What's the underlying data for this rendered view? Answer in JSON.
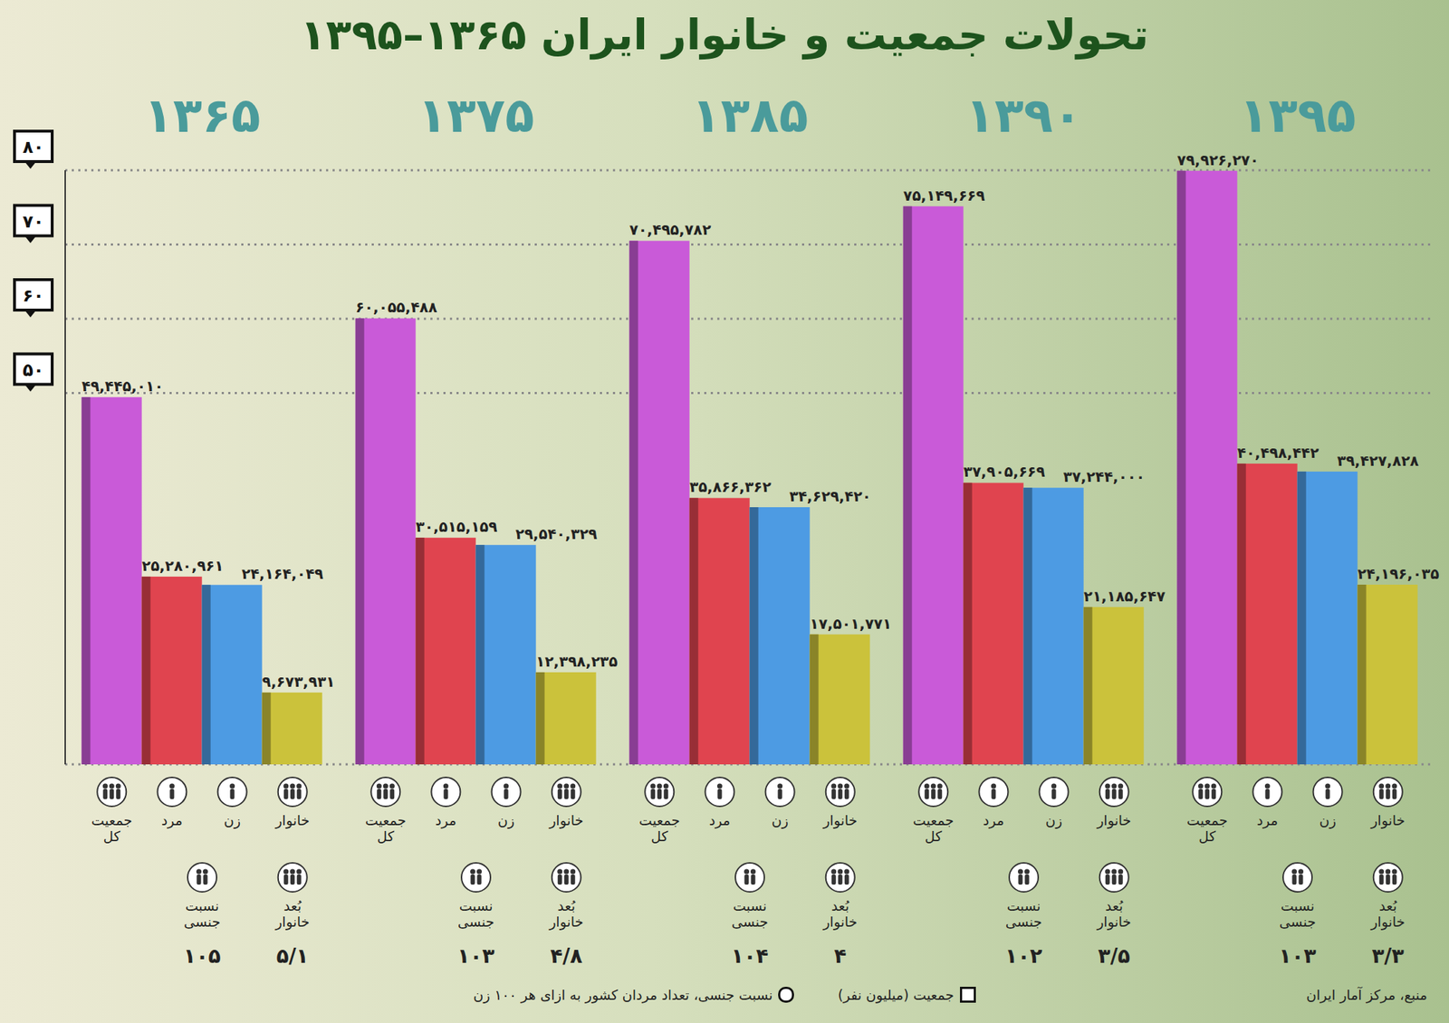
{
  "chart_data": {
    "type": "bar",
    "title": "تحولات جمعیت و خانوار ایران ۱۳۶۵–۱۳۹۵",
    "categories": [
      "۱۳۶۵",
      "۱۳۷۵",
      "۱۳۸۵",
      "۱۳۹۰",
      "۱۳۹۵"
    ],
    "series": [
      {
        "name": "جمعیت کل",
        "color": "#c95ad8",
        "values": [
          49.44501,
          60.055488,
          70.495782,
          75.149669,
          79.92627
        ],
        "value_labels": [
          "۴۹,۴۴۵,۰۱۰",
          "۶۰,۰۵۵,۴۸۸",
          "۷۰,۴۹۵,۷۸۲",
          "۷۵,۱۴۹,۶۶۹",
          "۷۹,۹۲۶,۲۷۰"
        ]
      },
      {
        "name": "مرد",
        "color": "#e0444f",
        "values": [
          25.280961,
          30.515159,
          35.866362,
          37.905669,
          40.498442
        ],
        "value_labels": [
          "۲۵,۲۸۰,۹۶۱",
          "۳۰,۵۱۵,۱۵۹",
          "۳۵,۸۶۶,۳۶۲",
          "۳۷,۹۰۵,۶۶۹",
          "۴۰,۴۹۸,۴۴۲"
        ]
      },
      {
        "name": "زن",
        "color": "#4d9be3",
        "values": [
          24.164049,
          29.540329,
          34.62942,
          37.244,
          39.427828
        ],
        "value_labels": [
          "۲۴,۱۶۴,۰۴۹",
          "۲۹,۵۴۰,۳۲۹",
          "۳۴,۶۲۹,۴۲۰",
          "۳۷,۲۴۴,۰۰۰",
          "۳۹,۴۲۷,۸۲۸"
        ]
      },
      {
        "name": "خانوار",
        "color": "#cbc23b",
        "values": [
          9.673931,
          12.398235,
          17.501771,
          21.185647,
          24.196035
        ],
        "value_labels": [
          "۹,۶۷۳,۹۳۱",
          "۱۲,۳۹۸,۲۳۵",
          "۱۷,۵۰۱,۷۷۱",
          "۲۱,۱۸۵,۶۴۷",
          "۲۴,۱۹۶,۰۳۵"
        ]
      }
    ],
    "ylim": [
      0,
      80
    ],
    "yticks": [
      {
        "value": 50,
        "label": "۵۰"
      },
      {
        "value": 60,
        "label": "۶۰"
      },
      {
        "value": 70,
        "label": "۷۰"
      },
      {
        "value": 80,
        "label": "۸۰"
      }
    ],
    "grid": true,
    "data_labels": true,
    "sex_ratio": {
      "name": "نسبت جنسی",
      "values": [
        105,
        103,
        104,
        102,
        103
      ],
      "value_labels": [
        "۱۰۵",
        "۱۰۳",
        "۱۰۴",
        "۱۰۲",
        "۱۰۳"
      ]
    },
    "household_size": {
      "name": "بُعد خانوار",
      "values": [
        5.1,
        4.8,
        4,
        3.5,
        3.3
      ],
      "value_labels": [
        "۵/۱",
        "۴/۸",
        "۴",
        "۳/۵",
        "۳/۳"
      ]
    },
    "footnotes": [
      "جمعیت (میلیون نفر)",
      "نسبت جنسی، تعداد مردان کشور به ازای هر ۱۰۰ زن"
    ],
    "source": "منبع، مرکز آمار ایران"
  }
}
